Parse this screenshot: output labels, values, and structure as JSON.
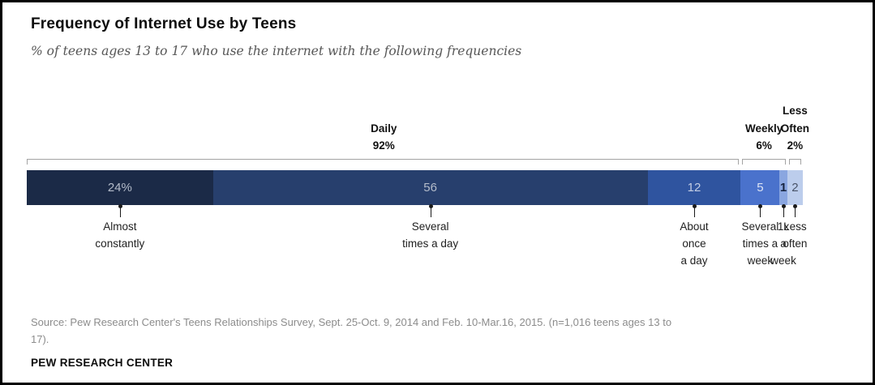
{
  "header": {
    "title": "Frequency of Internet Use by Teens",
    "subtitle": "% of  teens ages 13 to 17 who use the internet with the following frequencies"
  },
  "chart_data": {
    "type": "bar",
    "subtype": "stacked_horizontal_100pct",
    "title": "Frequency of Internet Use by Teens",
    "unit": "% of teens",
    "xlim": [
      0,
      100
    ],
    "categories": [
      "Almost constantly",
      "Several times a day",
      "About once a day",
      "Several times a week",
      "1x a week",
      "Less often"
    ],
    "values": [
      24,
      56,
      12,
      5,
      1,
      2
    ],
    "segments": [
      {
        "category": "Almost constantly",
        "value": 24,
        "bar_label": "24%",
        "color": "#1b2a47",
        "label_color": "#b4bcca",
        "label_bold": false,
        "below_lines": [
          "Almost",
          "constantly"
        ]
      },
      {
        "category": "Several times a day",
        "value": 56,
        "bar_label": "56",
        "color": "#273f6d",
        "label_color": "#b4bcca",
        "label_bold": false,
        "below_lines": [
          "Several",
          "times a day"
        ]
      },
      {
        "category": "About once a day",
        "value": 12,
        "bar_label": "12",
        "color": "#2f549f",
        "label_color": "#c3cde4",
        "label_bold": false,
        "below_lines": [
          "About",
          "once",
          "a day"
        ]
      },
      {
        "category": "Several times a week",
        "value": 5,
        "bar_label": "5",
        "color": "#4a72cc",
        "label_color": "#dce3f4",
        "label_bold": false,
        "below_lines": [
          "Several",
          "times a",
          "week"
        ]
      },
      {
        "category": "1x a week",
        "value": 1,
        "bar_label": "1",
        "color": "#8aa6e0",
        "label_color": "#17243f",
        "label_bold": true,
        "below_lines": [
          "1x",
          "a",
          "week"
        ]
      },
      {
        "category": "Less often",
        "value": 2,
        "bar_label": "2",
        "color": "#bccdec",
        "label_color": "#4a5468",
        "label_bold": false,
        "below_lines": [
          "Less",
          "often"
        ]
      }
    ],
    "groups": [
      {
        "name": "Daily",
        "value": 92,
        "label_lines": [
          "Daily",
          "92%"
        ],
        "start": 0,
        "end": 92
      },
      {
        "name": "Weekly",
        "value": 6,
        "label_lines": [
          "Weekly",
          "6%"
        ],
        "start": 92,
        "end": 98
      },
      {
        "name": "Less Often",
        "value": 2,
        "label_lines": [
          "Less",
          "Often",
          "2%"
        ],
        "start": 98,
        "end": 100
      }
    ],
    "legend": "none",
    "grid": false
  },
  "footer": {
    "source_line1": "Source: Pew Research Center's Teens Relationships Survey, Sept. 25-Oct. 9, 2014 and Feb. 10-Mar.16, 2015. (n=1,016 teens ages 13 to",
    "source_line2": "17).",
    "brand": "PEW RESEARCH CENTER"
  }
}
